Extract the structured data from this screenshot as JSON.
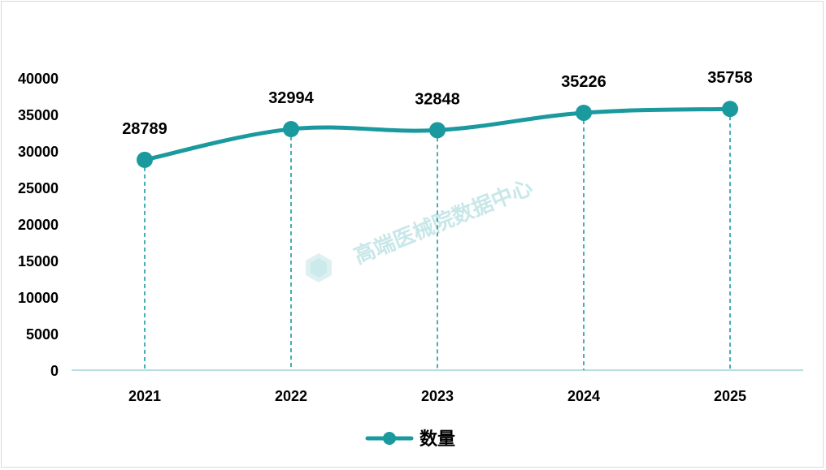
{
  "chart_data": {
    "type": "line",
    "categories": [
      "2021",
      "2022",
      "2023",
      "2024",
      "2025"
    ],
    "series": [
      {
        "name": "数量",
        "values": [
          28789,
          32994,
          32848,
          35226,
          35758
        ],
        "color": "#1a9a9e"
      }
    ],
    "ylim": [
      0,
      40000
    ],
    "yticks": [
      "0",
      "5000",
      "10000",
      "15000",
      "20000",
      "25000",
      "30000",
      "35000",
      "40000"
    ],
    "grid": false,
    "drop_lines": true,
    "smooth": true,
    "legend_position": "bottom"
  },
  "watermark": {
    "text": "高端医械院数据中心",
    "icon": "hexagon-logo-icon"
  }
}
